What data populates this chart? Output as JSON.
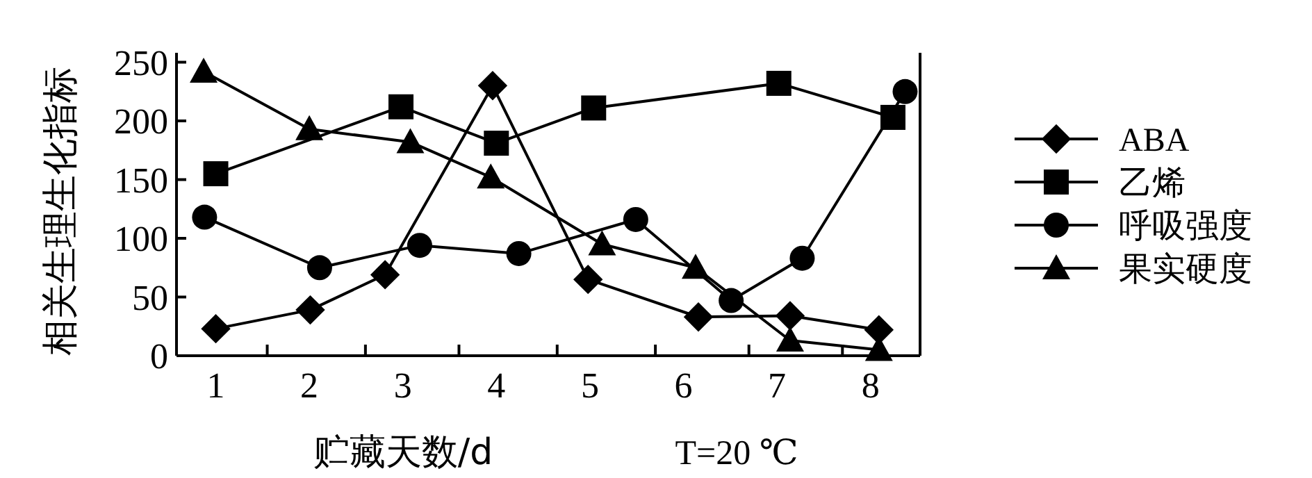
{
  "chart_data": {
    "type": "line",
    "xlabel": "贮藏天数/d",
    "ylabel": "相关生理生化指标",
    "annotations": [
      "T=20 ℃"
    ],
    "xlim": [
      0.58,
      8.53
    ],
    "ylim": [
      0,
      258
    ],
    "xticks": [
      1,
      {
        "value": 1.55,
        "label": null
      },
      2,
      {
        "value": 2.6,
        "label": null
      },
      3,
      {
        "value": 3.6,
        "label": null
      },
      4,
      {
        "value": 4.65,
        "label": null
      },
      5,
      {
        "value": 5.7,
        "label": null
      },
      6,
      {
        "value": 6.7,
        "label": null
      },
      7,
      {
        "value": 7.7,
        "label": null
      },
      8
    ],
    "yticks": [
      0,
      50,
      100,
      150,
      200,
      250
    ],
    "grid": false,
    "legend": "right",
    "line_style": "solid",
    "series": [
      {
        "name": "ABA",
        "color": "#000000",
        "marker": "diamond",
        "x": [
          1.0,
          2.01,
          2.81,
          3.96,
          4.98,
          6.16,
          7.14,
          8.09
        ],
        "values": [
          23,
          39,
          69,
          230,
          65,
          33,
          34,
          22
        ]
      },
      {
        "name": "乙烯",
        "color": "#000000",
        "marker": "square",
        "x": [
          1.0,
          2.98,
          4.0,
          5.04,
          7.02,
          8.24
        ],
        "values": [
          155,
          212,
          181,
          211,
          232,
          203
        ]
      },
      {
        "name": "呼吸强度",
        "color": "#000000",
        "marker": "circle",
        "x": [
          0.88,
          2.11,
          3.18,
          4.24,
          5.49,
          6.51,
          7.27,
          8.37
        ],
        "values": [
          118,
          75,
          94,
          87,
          116,
          47,
          83,
          225
        ]
      },
      {
        "name": "果实硬度",
        "color": "#000000",
        "marker": "triangle",
        "x": [
          0.87,
          2.0,
          3.08,
          3.94,
          5.13,
          6.13,
          7.14,
          8.09
        ],
        "values": [
          242,
          193,
          182,
          152,
          95,
          75,
          13,
          5
        ]
      }
    ]
  }
}
